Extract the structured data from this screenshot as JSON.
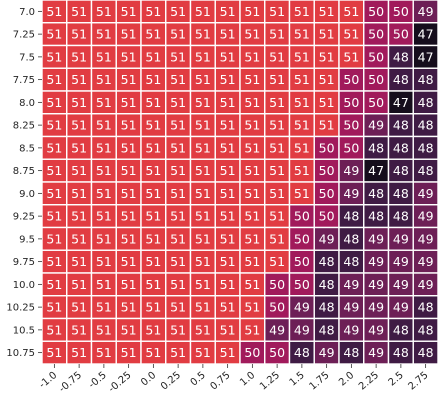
{
  "chart_data": {
    "type": "heatmap",
    "title": "",
    "xlabel": "",
    "ylabel": "",
    "x": [
      "-1.0",
      "-0.75",
      "-0.5",
      "-0.25",
      "0.0",
      "0.25",
      "0.5",
      "0.75",
      "1.0",
      "1.25",
      "1.5",
      "1.75",
      "2.0",
      "2.25",
      "2.5",
      "2.75"
    ],
    "y": [
      "7.0",
      "7.25",
      "7.5",
      "7.75",
      "8.0",
      "8.25",
      "8.5",
      "8.75",
      "9.0",
      "9.25",
      "9.5",
      "9.75",
      "10.0",
      "10.25",
      "10.5",
      "10.75"
    ],
    "values": [
      [
        51,
        51,
        51,
        51,
        51,
        51,
        51,
        51,
        51,
        51,
        51,
        51,
        51,
        50,
        50,
        49
      ],
      [
        51,
        51,
        51,
        51,
        51,
        51,
        51,
        51,
        51,
        51,
        51,
        51,
        51,
        50,
        50,
        47
      ],
      [
        51,
        51,
        51,
        51,
        51,
        51,
        51,
        51,
        51,
        51,
        51,
        51,
        51,
        50,
        48,
        47
      ],
      [
        51,
        51,
        51,
        51,
        51,
        51,
        51,
        51,
        51,
        51,
        51,
        51,
        50,
        50,
        48,
        48
      ],
      [
        51,
        51,
        51,
        51,
        51,
        51,
        51,
        51,
        51,
        51,
        51,
        51,
        50,
        50,
        47,
        48
      ],
      [
        51,
        51,
        51,
        51,
        51,
        51,
        51,
        51,
        51,
        51,
        51,
        51,
        50,
        49,
        48,
        48
      ],
      [
        51,
        51,
        51,
        51,
        51,
        51,
        51,
        51,
        51,
        51,
        51,
        50,
        50,
        48,
        48,
        48
      ],
      [
        51,
        51,
        51,
        51,
        51,
        51,
        51,
        51,
        51,
        51,
        51,
        50,
        49,
        47,
        48,
        48
      ],
      [
        51,
        51,
        51,
        51,
        51,
        51,
        51,
        51,
        51,
        51,
        51,
        50,
        49,
        48,
        48,
        49
      ],
      [
        51,
        51,
        51,
        51,
        51,
        51,
        51,
        51,
        51,
        51,
        50,
        50,
        48,
        48,
        48,
        49
      ],
      [
        51,
        51,
        51,
        51,
        51,
        51,
        51,
        51,
        51,
        51,
        50,
        49,
        48,
        49,
        49,
        49
      ],
      [
        51,
        51,
        51,
        51,
        51,
        51,
        51,
        51,
        51,
        51,
        50,
        48,
        48,
        49,
        49,
        49
      ],
      [
        51,
        51,
        51,
        51,
        51,
        51,
        51,
        51,
        51,
        50,
        50,
        48,
        49,
        49,
        49,
        49
      ],
      [
        51,
        51,
        51,
        51,
        51,
        51,
        51,
        51,
        51,
        50,
        49,
        48,
        49,
        49,
        49,
        48
      ],
      [
        51,
        51,
        51,
        51,
        51,
        51,
        51,
        51,
        51,
        49,
        49,
        48,
        49,
        49,
        48,
        48
      ],
      [
        51,
        51,
        51,
        51,
        51,
        51,
        51,
        51,
        50,
        50,
        48,
        49,
        48,
        49,
        48,
        48
      ]
    ],
    "color_scale": {
      "51": "#e13c42",
      "50": "#a11a5b",
      "49": "#6d1f56",
      "48": "#3f1b44",
      "47": "#150d1c"
    },
    "annotation_colors": {
      "light_cells": "#ffffff",
      "dark_cells": "#ffffff"
    },
    "colorbar": false,
    "grid_line_color": "#ffffff"
  }
}
